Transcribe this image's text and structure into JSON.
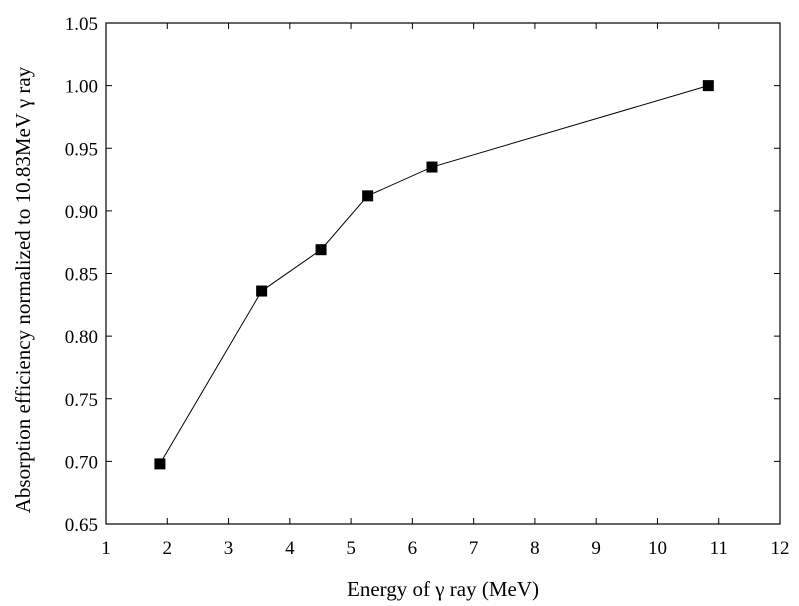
{
  "chart_data": {
    "type": "line",
    "title": "",
    "xlabel": "Energy of γ ray (MeV)",
    "ylabel": "Absorption efficiency normalized to 10.83MeV γ ray",
    "xlim": [
      1,
      12
    ],
    "ylim": [
      0.65,
      1.05
    ],
    "xticks": [
      1,
      2,
      3,
      4,
      5,
      6,
      7,
      8,
      9,
      10,
      11,
      12
    ],
    "yticks": [
      "0.65",
      "0.70",
      "0.75",
      "0.80",
      "0.85",
      "0.90",
      "0.95",
      "1.00",
      "1.05"
    ],
    "grid": false,
    "marker": "square",
    "series": [
      {
        "name": "Absorption efficiency",
        "x": [
          1.88,
          3.54,
          4.51,
          5.27,
          6.32,
          10.83
        ],
        "y": [
          0.698,
          0.836,
          0.869,
          0.912,
          0.935,
          1.0
        ]
      }
    ]
  }
}
